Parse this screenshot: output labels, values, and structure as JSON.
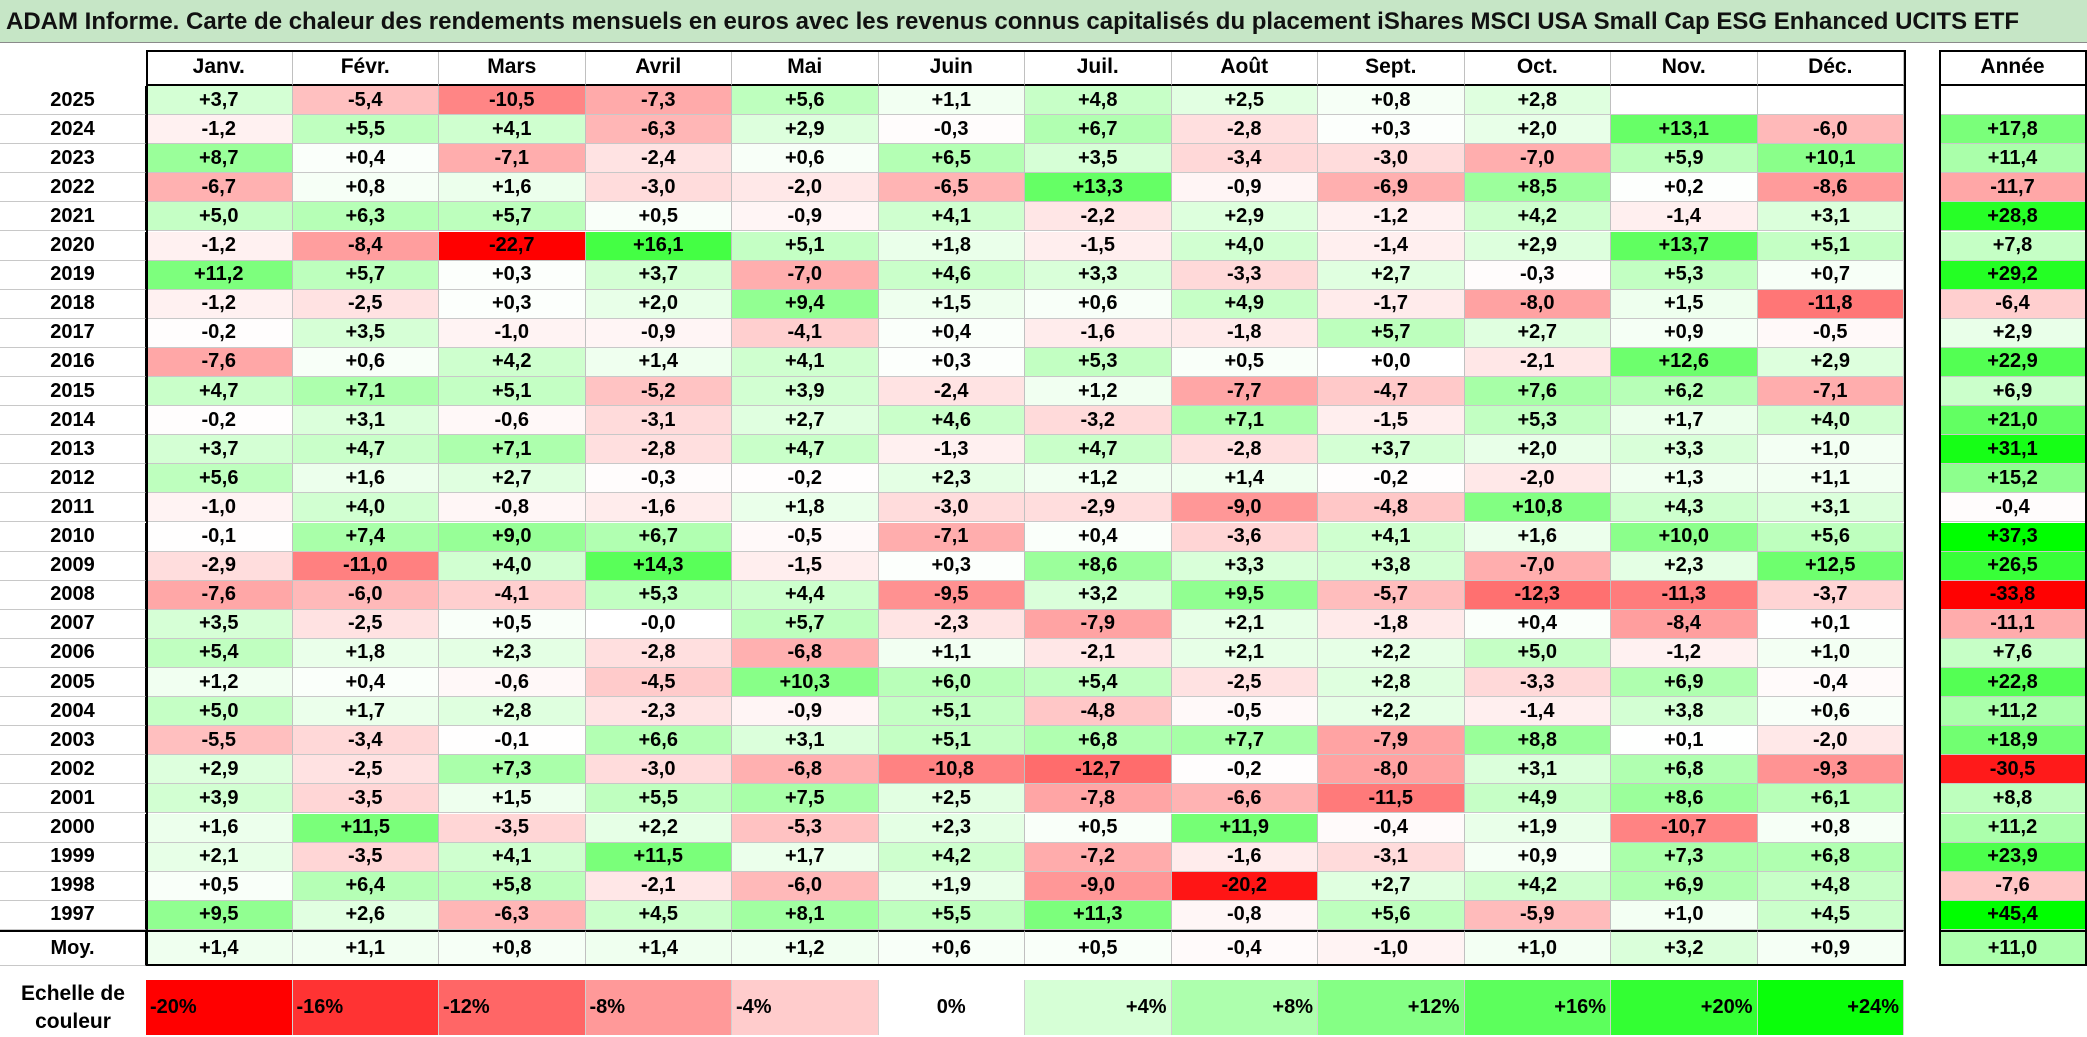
{
  "title": "ADAM Informe. Carte de chaleur des rendements mensuels en euros avec les revenus connus capitalisés du placement iShares MSCI USA Small Cap ESG Enhanced UCITS ETF",
  "chart_data": {
    "type": "heatmap",
    "title": "ADAM Informe. Carte de chaleur des rendements mensuels en euros avec les revenus connus capitalisés du placement iShares MSCI USA Small Cap ESG Enhanced UCITS ETF",
    "months": [
      "Janv.",
      "Févr.",
      "Mars",
      "Avril",
      "Mai",
      "Juin",
      "Juil.",
      "Août",
      "Sept.",
      "Oct.",
      "Nov.",
      "Déc."
    ],
    "annual_label": "Année",
    "rows": [
      {
        "year": "2025",
        "values": [
          "+3,7",
          "-5,4",
          "-10,5",
          "-7,3",
          "+5,6",
          "+1,1",
          "+4,8",
          "+2,5",
          "+0,8",
          "+2,8",
          "",
          ""
        ],
        "annual": ""
      },
      {
        "year": "2024",
        "values": [
          "-1,2",
          "+5,5",
          "+4,1",
          "-6,3",
          "+2,9",
          "-0,3",
          "+6,7",
          "-2,8",
          "+0,3",
          "+2,0",
          "+13,1",
          "-6,0"
        ],
        "annual": "+17,8"
      },
      {
        "year": "2023",
        "values": [
          "+8,7",
          "+0,4",
          "-7,1",
          "-2,4",
          "+0,6",
          "+6,5",
          "+3,5",
          "-3,4",
          "-3,0",
          "-7,0",
          "+5,9",
          "+10,1"
        ],
        "annual": "+11,4"
      },
      {
        "year": "2022",
        "values": [
          "-6,7",
          "+0,8",
          "+1,6",
          "-3,0",
          "-2,0",
          "-6,5",
          "+13,3",
          "-0,9",
          "-6,9",
          "+8,5",
          "+0,2",
          "-8,6"
        ],
        "annual": "-11,7"
      },
      {
        "year": "2021",
        "values": [
          "+5,0",
          "+6,3",
          "+5,7",
          "+0,5",
          "-0,9",
          "+4,1",
          "-2,2",
          "+2,9",
          "-1,2",
          "+4,2",
          "-1,4",
          "+3,1"
        ],
        "annual": "+28,8"
      },
      {
        "year": "2020",
        "values": [
          "-1,2",
          "-8,4",
          "-22,7",
          "+16,1",
          "+5,1",
          "+1,8",
          "-1,5",
          "+4,0",
          "-1,4",
          "+2,9",
          "+13,7",
          "+5,1"
        ],
        "annual": "+7,8"
      },
      {
        "year": "2019",
        "values": [
          "+11,2",
          "+5,7",
          "+0,3",
          "+3,7",
          "-7,0",
          "+4,6",
          "+3,3",
          "-3,3",
          "+2,7",
          "-0,3",
          "+5,3",
          "+0,7"
        ],
        "annual": "+29,2"
      },
      {
        "year": "2018",
        "values": [
          "-1,2",
          "-2,5",
          "+0,3",
          "+2,0",
          "+9,4",
          "+1,5",
          "+0,6",
          "+4,9",
          "-1,7",
          "-8,0",
          "+1,5",
          "-11,8"
        ],
        "annual": "-6,4"
      },
      {
        "year": "2017",
        "values": [
          "-0,2",
          "+3,5",
          "-1,0",
          "-0,9",
          "-4,1",
          "+0,4",
          "-1,6",
          "-1,8",
          "+5,7",
          "+2,7",
          "+0,9",
          "-0,5"
        ],
        "annual": "+2,9"
      },
      {
        "year": "2016",
        "values": [
          "-7,6",
          "+0,6",
          "+4,2",
          "+1,4",
          "+4,1",
          "+0,3",
          "+5,3",
          "+0,5",
          "+0,0",
          "-2,1",
          "+12,6",
          "+2,9"
        ],
        "annual": "+22,9"
      },
      {
        "year": "2015",
        "values": [
          "+4,7",
          "+7,1",
          "+5,1",
          "-5,2",
          "+3,9",
          "-2,4",
          "+1,2",
          "-7,7",
          "-4,7",
          "+7,6",
          "+6,2",
          "-7,1"
        ],
        "annual": "+6,9"
      },
      {
        "year": "2014",
        "values": [
          "-0,2",
          "+3,1",
          "-0,6",
          "-3,1",
          "+2,7",
          "+4,6",
          "-3,2",
          "+7,1",
          "-1,5",
          "+5,3",
          "+1,7",
          "+4,0"
        ],
        "annual": "+21,0"
      },
      {
        "year": "2013",
        "values": [
          "+3,7",
          "+4,7",
          "+7,1",
          "-2,8",
          "+4,7",
          "-1,3",
          "+4,7",
          "-2,8",
          "+3,7",
          "+2,0",
          "+3,3",
          "+1,0"
        ],
        "annual": "+31,1"
      },
      {
        "year": "2012",
        "values": [
          "+5,6",
          "+1,6",
          "+2,7",
          "-0,3",
          "-0,2",
          "+2,3",
          "+1,2",
          "+1,4",
          "-0,2",
          "-2,0",
          "+1,3",
          "+1,1"
        ],
        "annual": "+15,2"
      },
      {
        "year": "2011",
        "values": [
          "-1,0",
          "+4,0",
          "-0,8",
          "-1,6",
          "+1,8",
          "-3,0",
          "-2,9",
          "-9,0",
          "-4,8",
          "+10,8",
          "+4,3",
          "+3,1"
        ],
        "annual": "-0,4"
      },
      {
        "year": "2010",
        "values": [
          "-0,1",
          "+7,4",
          "+9,0",
          "+6,7",
          "-0,5",
          "-7,1",
          "+0,4",
          "-3,6",
          "+4,1",
          "+1,6",
          "+10,0",
          "+5,6"
        ],
        "annual": "+37,3"
      },
      {
        "year": "2009",
        "values": [
          "-2,9",
          "-11,0",
          "+4,0",
          "+14,3",
          "-1,5",
          "+0,3",
          "+8,6",
          "+3,3",
          "+3,8",
          "-7,0",
          "+2,3",
          "+12,5"
        ],
        "annual": "+26,5"
      },
      {
        "year": "2008",
        "values": [
          "-7,6",
          "-6,0",
          "-4,1",
          "+5,3",
          "+4,4",
          "-9,5",
          "+3,2",
          "+9,5",
          "-5,7",
          "-12,3",
          "-11,3",
          "-3,7"
        ],
        "annual": "-33,8"
      },
      {
        "year": "2007",
        "values": [
          "+3,5",
          "-2,5",
          "+0,5",
          "-0,0",
          "+5,7",
          "-2,3",
          "-7,9",
          "+2,1",
          "-1,8",
          "+0,4",
          "-8,4",
          "+0,1"
        ],
        "annual": "-11,1"
      },
      {
        "year": "2006",
        "values": [
          "+5,4",
          "+1,8",
          "+2,3",
          "-2,8",
          "-6,8",
          "+1,1",
          "-2,1",
          "+2,1",
          "+2,2",
          "+5,0",
          "-1,2",
          "+1,0"
        ],
        "annual": "+7,6"
      },
      {
        "year": "2005",
        "values": [
          "+1,2",
          "+0,4",
          "-0,6",
          "-4,5",
          "+10,3",
          "+6,0",
          "+5,4",
          "-2,5",
          "+2,8",
          "-3,3",
          "+6,9",
          "-0,4"
        ],
        "annual": "+22,8"
      },
      {
        "year": "2004",
        "values": [
          "+5,0",
          "+1,7",
          "+2,8",
          "-2,3",
          "-0,9",
          "+5,1",
          "-4,8",
          "-0,5",
          "+2,2",
          "-1,4",
          "+3,8",
          "+0,6"
        ],
        "annual": "+11,2"
      },
      {
        "year": "2003",
        "values": [
          "-5,5",
          "-3,4",
          "-0,1",
          "+6,6",
          "+3,1",
          "+5,1",
          "+6,8",
          "+7,7",
          "-7,9",
          "+8,8",
          "+0,1",
          "-2,0"
        ],
        "annual": "+18,9"
      },
      {
        "year": "2002",
        "values": [
          "+2,9",
          "-2,5",
          "+7,3",
          "-3,0",
          "-6,8",
          "-10,8",
          "-12,7",
          "-0,2",
          "-8,0",
          "+3,1",
          "+6,8",
          "-9,3"
        ],
        "annual": "-30,5"
      },
      {
        "year": "2001",
        "values": [
          "+3,9",
          "-3,5",
          "+1,5",
          "+5,5",
          "+7,5",
          "+2,5",
          "-7,8",
          "-6,6",
          "-11,5",
          "+4,9",
          "+8,6",
          "+6,1"
        ],
        "annual": "+8,8"
      },
      {
        "year": "2000",
        "values": [
          "+1,6",
          "+11,5",
          "-3,5",
          "+2,2",
          "-5,3",
          "+2,3",
          "+0,5",
          "+11,9",
          "-0,4",
          "+1,9",
          "-10,7",
          "+0,8"
        ],
        "annual": "+11,2"
      },
      {
        "year": "1999",
        "values": [
          "+2,1",
          "-3,5",
          "+4,1",
          "+11,5",
          "+1,7",
          "+4,2",
          "-7,2",
          "-1,6",
          "-3,1",
          "+0,9",
          "+7,3",
          "+6,8"
        ],
        "annual": "+23,9"
      },
      {
        "year": "1998",
        "values": [
          "+0,5",
          "+6,4",
          "+5,8",
          "-2,1",
          "-6,0",
          "+1,9",
          "-9,0",
          "-20,2",
          "+2,7",
          "+4,2",
          "+6,9",
          "+4,8"
        ],
        "annual": "-7,6"
      },
      {
        "year": "1997",
        "values": [
          "+9,5",
          "+2,6",
          "-6,3",
          "+4,5",
          "+8,1",
          "+5,5",
          "+11,3",
          "-0,8",
          "+5,6",
          "-5,9",
          "+1,0",
          "+4,5"
        ],
        "annual": "+45,4"
      }
    ],
    "average": {
      "label": "Moy.",
      "values": [
        "+1,4",
        "+1,1",
        "+0,8",
        "+1,4",
        "+1,2",
        "+0,6",
        "+0,5",
        "-0,4",
        "-1,0",
        "+1,0",
        "+3,2",
        "+0,9"
      ],
      "annual": "+11,0"
    },
    "color_scale": {
      "label": "Echelle de couleur",
      "steps": [
        {
          "label": "-20%",
          "value": -20,
          "color": "#ff0000"
        },
        {
          "label": "-16%",
          "value": -16,
          "color": "#ff3333"
        },
        {
          "label": "-12%",
          "value": -12,
          "color": "#ff6666"
        },
        {
          "label": "-8%",
          "value": -8,
          "color": "#ff9999"
        },
        {
          "label": "-4%",
          "value": -4,
          "color": "#ffcccc"
        },
        {
          "label": "0%",
          "value": 0,
          "color": "#ffffff"
        },
        {
          "label": "+4%",
          "value": 4,
          "color": "#d6ffd6"
        },
        {
          "label": "+8%",
          "value": 8,
          "color": "#adffad"
        },
        {
          "label": "+12%",
          "value": 12,
          "color": "#85ff85"
        },
        {
          "label": "+16%",
          "value": 16,
          "color": "#5cff5c"
        },
        {
          "label": "+20%",
          "value": 20,
          "color": "#33ff33"
        },
        {
          "label": "+24%",
          "value": 24,
          "color": "#0aff0a"
        }
      ]
    },
    "colors": {
      "title_bg": "#c6e6c6",
      "negative": "#ff0000",
      "positive": "#00ff00"
    }
  }
}
